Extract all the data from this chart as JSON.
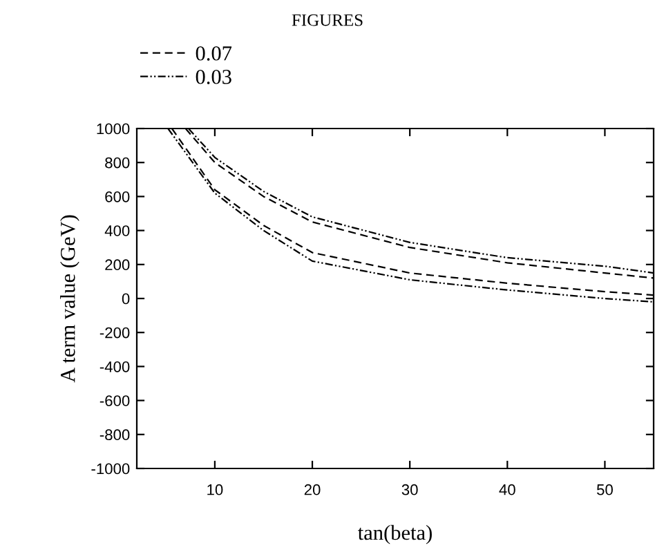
{
  "chart_data": {
    "type": "line",
    "title": "FIGURES",
    "xlabel": "tan(beta)",
    "ylabel": "A term value (GeV)",
    "xlim": [
      2,
      55
    ],
    "xticks": [
      10,
      20,
      30,
      40,
      50
    ],
    "ylim": [
      -1000,
      1000
    ],
    "yticks": [
      -1000,
      -800,
      -600,
      -400,
      -200,
      0,
      200,
      400,
      600,
      800,
      1000
    ],
    "grid": false,
    "legend": "top left",
    "marker": "none",
    "series": [
      {
        "name": "0.07",
        "color": "#000000",
        "line_style": "dashed",
        "x": [
          7.0,
          10,
          15,
          20,
          30,
          40,
          50,
          55
        ],
        "values": [
          1000,
          800,
          600,
          450,
          300,
          210,
          150,
          120
        ]
      },
      {
        "color": "#000000",
        "line_style": "dashed",
        "x": [
          5.6,
          10,
          15,
          20,
          30,
          40,
          50,
          55
        ],
        "values": [
          1000,
          640,
          430,
          270,
          150,
          90,
          40,
          20
        ]
      },
      {
        "name": "0.03",
        "color": "#000000",
        "line_style": "dashdot",
        "x": [
          7.3,
          10,
          15,
          20,
          30,
          40,
          50,
          55
        ],
        "values": [
          1000,
          830,
          630,
          480,
          330,
          240,
          190,
          150
        ]
      },
      {
        "color": "#000000",
        "line_style": "dashdot",
        "x": [
          5.2,
          10,
          15,
          20,
          30,
          40,
          50,
          55
        ],
        "values": [
          1000,
          620,
          400,
          220,
          110,
          50,
          0,
          -20
        ]
      }
    ]
  }
}
